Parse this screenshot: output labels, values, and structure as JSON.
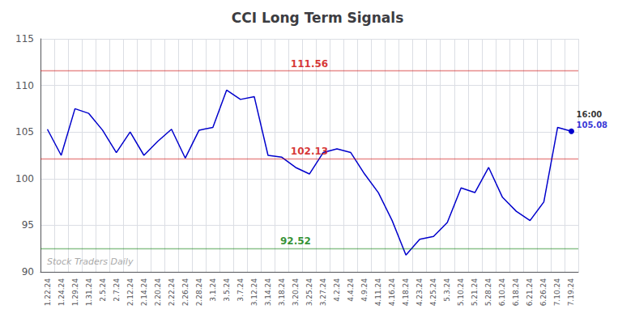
{
  "chart_data": {
    "type": "line",
    "title": "CCI Long Term Signals",
    "color": "#0000cc",
    "grid": true,
    "ylim": [
      90,
      115
    ],
    "yticks": [
      90,
      95,
      100,
      105,
      110,
      115
    ],
    "categories": [
      "1.22.24",
      "1.24.24",
      "1.29.24",
      "1.31.24",
      "2.5.24",
      "2.7.24",
      "2.12.24",
      "2.14.24",
      "2.20.24",
      "2.22.24",
      "2.26.24",
      "2.28.24",
      "3.1.24",
      "3.5.24",
      "3.7.24",
      "3.12.24",
      "3.14.24",
      "3.18.24",
      "3.20.24",
      "3.25.24",
      "3.27.24",
      "4.2.24",
      "4.4.24",
      "4.9.24",
      "4.11.24",
      "4.16.24",
      "4.18.24",
      "4.23.24",
      "4.25.24",
      "5.3.24",
      "5.10.24",
      "5.21.24",
      "5.28.24",
      "6.10.24",
      "6.18.24",
      "6.21.24",
      "6.26.24",
      "7.10.24",
      "7.19.24"
    ],
    "values": [
      105.3,
      102.5,
      107.5,
      107.0,
      105.2,
      102.8,
      105.0,
      102.5,
      104.0,
      105.3,
      102.2,
      105.2,
      105.5,
      109.5,
      108.5,
      108.8,
      102.5,
      102.3,
      101.2,
      100.5,
      102.8,
      103.2,
      102.8,
      100.5,
      98.5,
      95.5,
      91.8,
      93.5,
      93.8,
      95.3,
      99.0,
      98.5,
      101.2,
      98.0,
      96.5,
      95.5,
      97.5,
      105.5,
      105.08
    ],
    "hlines": [
      {
        "value": 111.56,
        "label": "111.56",
        "x": "3.25.24",
        "color": "#cc0000"
      },
      {
        "value": 102.13,
        "label": "102.13",
        "x": "3.25.24",
        "color": "#cc0000"
      },
      {
        "value": 92.52,
        "label": "92.52",
        "x": "3.20.24",
        "color": "#007700"
      }
    ],
    "annotations": [
      {
        "text": "16:00",
        "x": "7.19.24",
        "y": 105.08,
        "color": "#000000"
      },
      {
        "text": "105.08",
        "x": "7.19.24",
        "y": 105.08,
        "color": "#0000cc"
      }
    ],
    "watermark": "Stock Traders Daily"
  }
}
